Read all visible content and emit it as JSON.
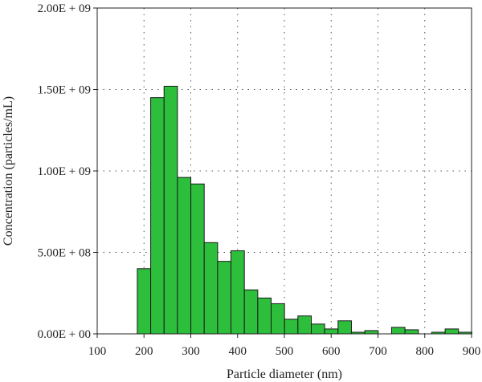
{
  "chart_data": {
    "type": "bar",
    "xlabel": "Particle diameter (nm)",
    "ylabel": "Concentration (particles/mL)",
    "xlim": [
      100,
      900
    ],
    "ylim": [
      0,
      2000000000
    ],
    "grid": true,
    "x_ticks": [
      "100",
      "200",
      "300",
      "400",
      "500",
      "600",
      "700",
      "800",
      "900"
    ],
    "y_ticks": [
      "0.00E + 00",
      "5.00E + 08",
      "1.00E + 09",
      "1.50E + 09",
      "2.00E + 09"
    ],
    "bin_width": 28.6,
    "bins": [
      {
        "x": 200,
        "value": 400000000
      },
      {
        "x": 228.6,
        "value": 1450000000
      },
      {
        "x": 257.2,
        "value": 1520000000
      },
      {
        "x": 285.8,
        "value": 960000000
      },
      {
        "x": 314.4,
        "value": 920000000
      },
      {
        "x": 343,
        "value": 560000000
      },
      {
        "x": 371.6,
        "value": 445000000
      },
      {
        "x": 400.2,
        "value": 510000000
      },
      {
        "x": 428.8,
        "value": 270000000
      },
      {
        "x": 457.4,
        "value": 220000000
      },
      {
        "x": 486,
        "value": 185000000
      },
      {
        "x": 514.6,
        "value": 90000000
      },
      {
        "x": 543.2,
        "value": 110000000
      },
      {
        "x": 571.8,
        "value": 60000000
      },
      {
        "x": 600.4,
        "value": 30000000
      },
      {
        "x": 629,
        "value": 80000000
      },
      {
        "x": 657.6,
        "value": 10000000
      },
      {
        "x": 686.2,
        "value": 20000000
      },
      {
        "x": 743.4,
        "value": 40000000
      },
      {
        "x": 772,
        "value": 25000000
      },
      {
        "x": 829.2,
        "value": 10000000
      },
      {
        "x": 857.8,
        "value": 30000000
      },
      {
        "x": 886.4,
        "value": 10000000
      }
    ]
  }
}
